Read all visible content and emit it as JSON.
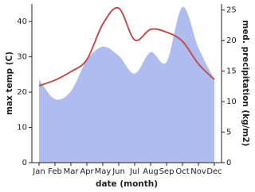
{
  "chart_data": {
    "type": "line",
    "x_label": "date (month)",
    "y_label": "max temp (C)",
    "y2_label": "med. precipitation (kg/m2)",
    "categories": [
      "Jan",
      "Feb",
      "Mar",
      "Apr",
      "May",
      "Jun",
      "Jul",
      "Aug",
      "Sep",
      "Oct",
      "Nov",
      "Dec"
    ],
    "series": [
      {
        "name": "med. precipitation",
        "mark": "area",
        "axis": "y2",
        "color": "#aebcf0",
        "values": [
          13.6,
          10.4,
          11.7,
          16.8,
          19.0,
          17.5,
          14.6,
          18.1,
          16.5,
          25.5,
          18.8,
          13.6
        ]
      },
      {
        "name": "max temp",
        "mark": "line",
        "color": "#c0504d",
        "values": [
          21.8,
          23.4,
          25.8,
          29.2,
          39.3,
          43.8,
          34.8,
          37.8,
          37.0,
          34.4,
          28.0,
          23.6
        ]
      }
    ],
    "ylim": [
      0,
      45
    ],
    "yticks": [
      0,
      10,
      20,
      30,
      40
    ],
    "y2lim": [
      0,
      26
    ],
    "y2ticks": [
      0,
      5,
      10,
      15,
      20,
      25
    ]
  }
}
